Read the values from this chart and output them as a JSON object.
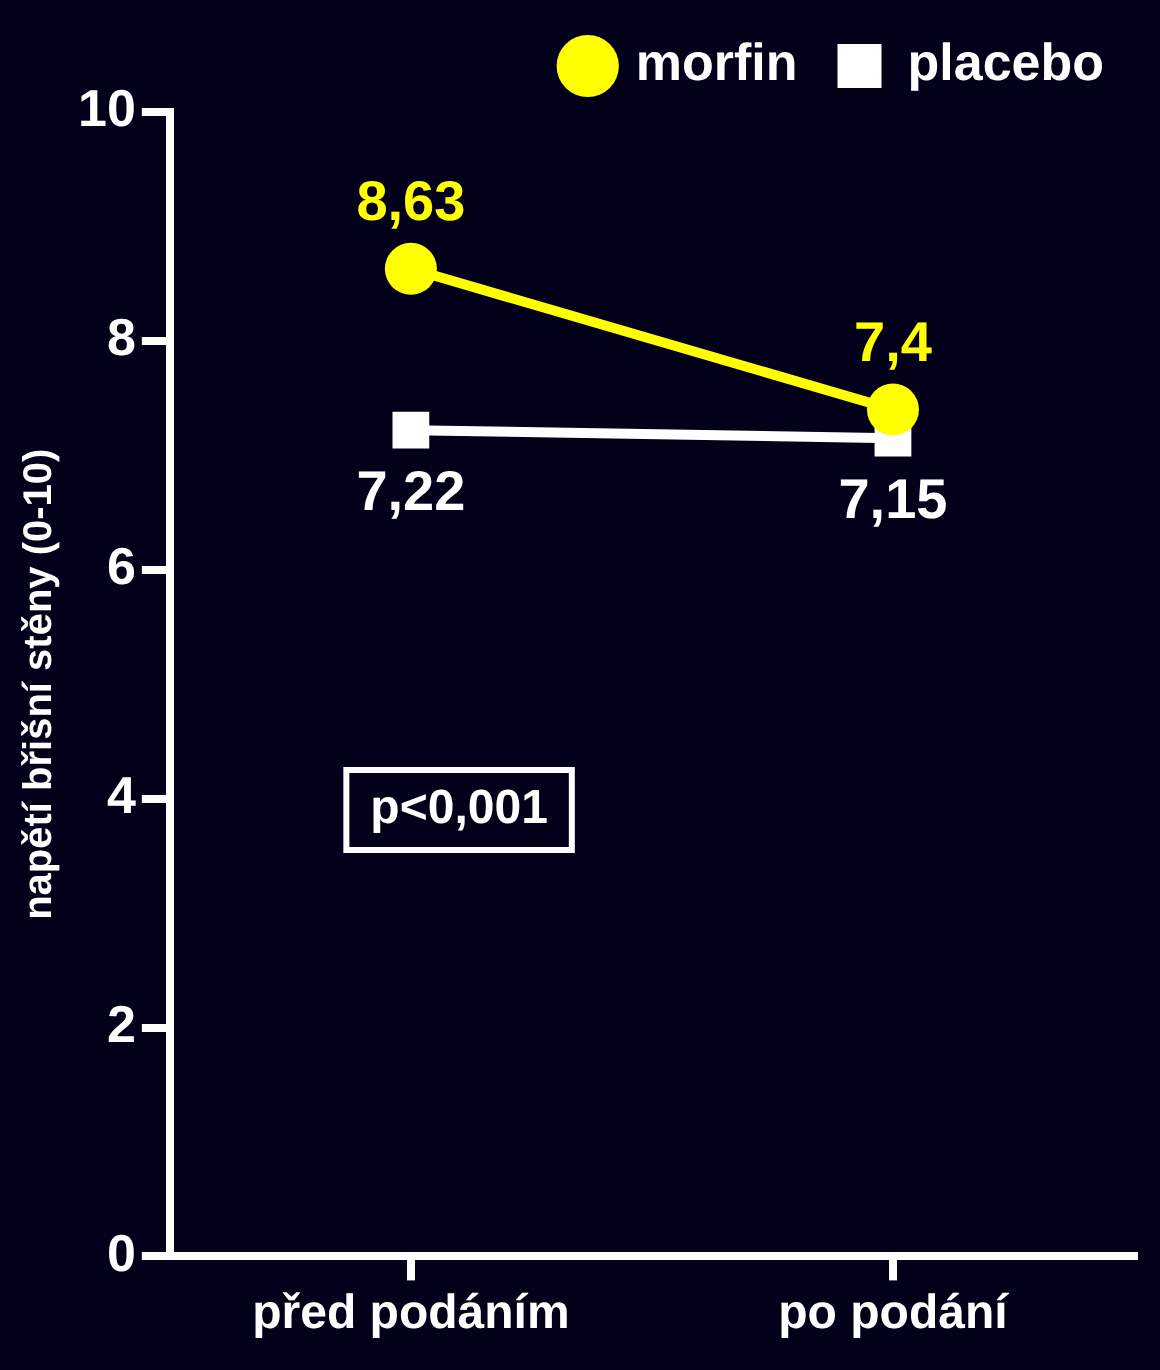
{
  "chart_data": {
    "type": "line",
    "categories": [
      "před podáním",
      "po podání"
    ],
    "ylabel": "napětí břišní stěny (0-10)",
    "ylim": [
      0,
      10
    ],
    "yticks": [
      0,
      2,
      4,
      6,
      8,
      10
    ],
    "grid": false,
    "legend": "top right",
    "series": [
      {
        "name": "morfin",
        "color": "#ffff00",
        "marker": "circle",
        "values": [
          8.63,
          7.4
        ],
        "value_labels": [
          "8,63",
          "7,4"
        ]
      },
      {
        "name": "placebo",
        "color": "#ffffff",
        "marker": "square",
        "values": [
          7.22,
          7.15
        ],
        "value_labels": [
          "7,22",
          "7,15"
        ]
      }
    ],
    "annotations": [
      "p<0,001"
    ]
  }
}
